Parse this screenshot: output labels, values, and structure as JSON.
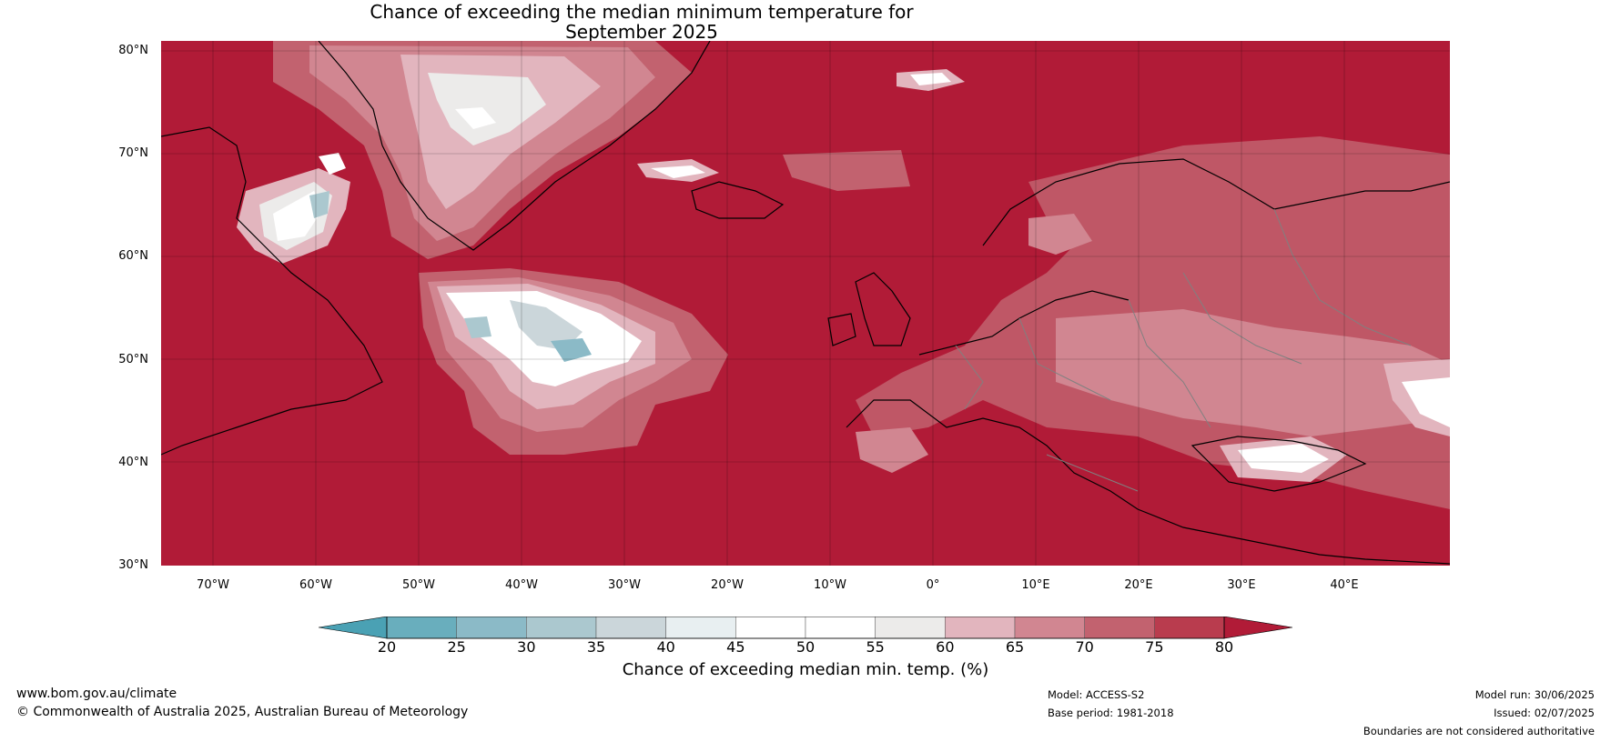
{
  "header": {
    "title_line1": "Chance of exceeding the median minimum temperature for",
    "title_line2": "September 2025"
  },
  "map": {
    "lat_labels": [
      "80°N",
      "70°N",
      "60°N",
      "50°N",
      "40°N",
      "30°N"
    ],
    "lon_labels": [
      "70°W",
      "60°W",
      "50°W",
      "40°W",
      "30°W",
      "20°W",
      "10°W",
      "0°",
      "10°E",
      "20°E",
      "30°E",
      "40°E"
    ],
    "extent": {
      "lon_min": -75,
      "lon_max": 50,
      "lat_min": 30,
      "lat_max": 81
    },
    "background_color": "#b11b37",
    "ocean_land_note": ""
  },
  "colorbar": {
    "ticks": [
      "20",
      "25",
      "30",
      "35",
      "40",
      "45",
      "50",
      "55",
      "60",
      "65",
      "70",
      "75",
      "80"
    ],
    "colors": [
      "#4aa1b4",
      "#69aebd",
      "#8bbac7",
      "#abc8cf",
      "#cbd6da",
      "#e8eff1",
      "#ffffff",
      "#ffffff",
      "#ecebea",
      "#e2b5be",
      "#d18691",
      "#c2626f",
      "#b93c4e",
      "#b11b37"
    ],
    "label": "Chance of exceeding median min. temp. (%)"
  },
  "footer": {
    "website": "www.bom.gov.au/climate",
    "copyright": "© Commonwealth of Australia 2025, Australian Bureau of Meteorology",
    "model": "Model: ACCESS-S2",
    "base_period": "Base period: 1981-2018",
    "model_run": "Model run: 30/06/2025",
    "issued": "Issued: 02/07/2025",
    "disclaimer": "Boundaries are not considered authoritative"
  }
}
